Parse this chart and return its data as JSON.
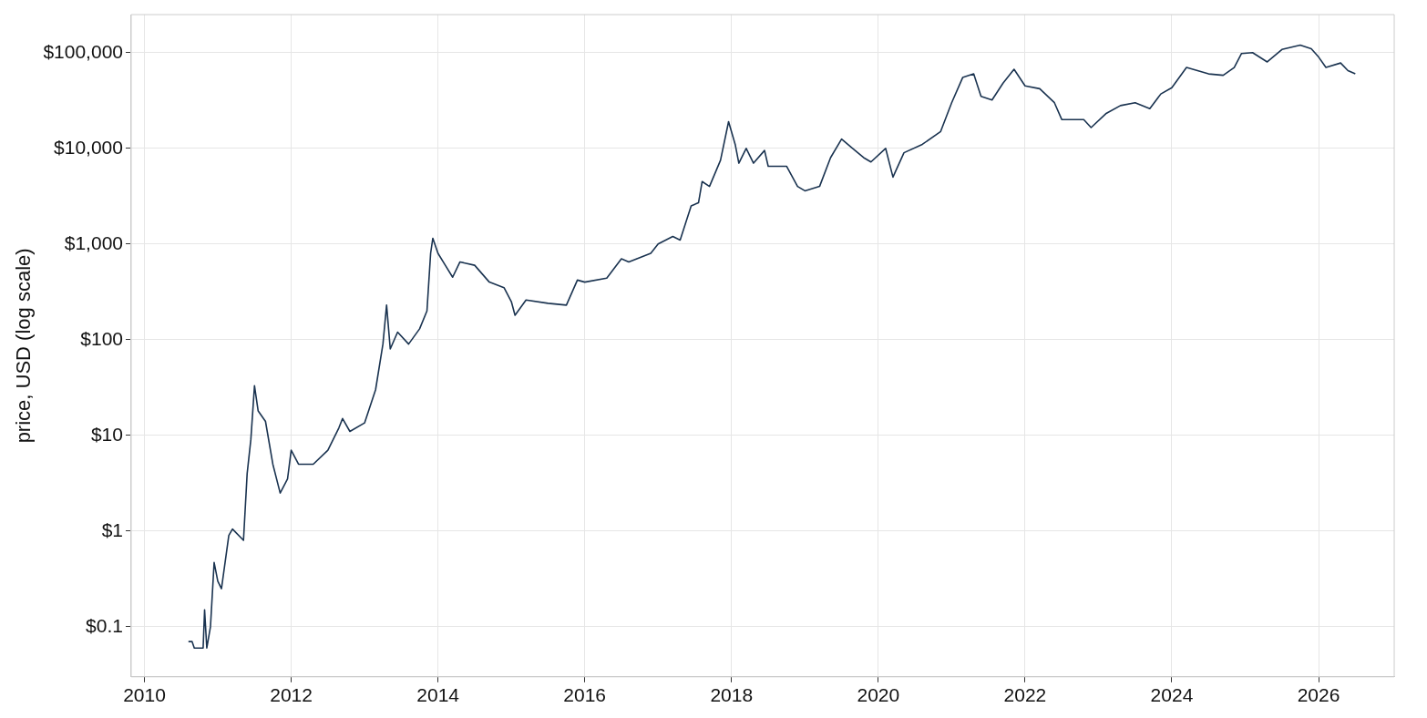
{
  "chart_data": {
    "type": "line",
    "ylabel": "price, USD (log scale)",
    "log": "y",
    "grid": true,
    "legend": false,
    "marker": "none",
    "line_style": "solid",
    "xlim": [
      2009.82,
      2027.03
    ],
    "xticks": [
      2010,
      2012,
      2014,
      2016,
      2018,
      2020,
      2022,
      2024,
      2026
    ],
    "ylim": [
      0.03,
      250000
    ],
    "yticks": [
      {
        "value": 0.1,
        "label": "$0.1"
      },
      {
        "value": 1,
        "label": "$1"
      },
      {
        "value": 10,
        "label": "$10"
      },
      {
        "value": 100,
        "label": "$100"
      },
      {
        "value": 1000,
        "label": "$1,000"
      },
      {
        "value": 10000,
        "label": "$10,000"
      },
      {
        "value": 100000,
        "label": "$100,000"
      }
    ],
    "series": [
      {
        "color": "#1a3350",
        "x": [
          2010.6,
          2010.65,
          2010.68,
          2010.8,
          2010.82,
          2010.85,
          2010.9,
          2010.95,
          2011.0,
          2011.05,
          2011.15,
          2011.2,
          2011.35,
          2011.4,
          2011.45,
          2011.5,
          2011.55,
          2011.65,
          2011.75,
          2011.85,
          2011.95,
          2012.0,
          2012.1,
          2012.3,
          2012.5,
          2012.65,
          2012.7,
          2012.8,
          2013.0,
          2013.15,
          2013.25,
          2013.3,
          2013.35,
          2013.45,
          2013.6,
          2013.75,
          2013.85,
          2013.9,
          2013.93,
          2014.0,
          2014.1,
          2014.2,
          2014.3,
          2014.5,
          2014.7,
          2014.9,
          2015.0,
          2015.05,
          2015.2,
          2015.5,
          2015.75,
          2015.9,
          2016.0,
          2016.3,
          2016.5,
          2016.6,
          2016.9,
          2017.0,
          2017.2,
          2017.3,
          2017.45,
          2017.55,
          2017.6,
          2017.7,
          2017.85,
          2017.96,
          2018.05,
          2018.1,
          2018.2,
          2018.3,
          2018.45,
          2018.5,
          2018.75,
          2018.9,
          2019.0,
          2019.2,
          2019.35,
          2019.5,
          2019.65,
          2019.8,
          2019.9,
          2020.1,
          2020.2,
          2020.35,
          2020.6,
          2020.85,
          2021.0,
          2021.15,
          2021.3,
          2021.4,
          2021.55,
          2021.7,
          2021.85,
          2022.0,
          2022.2,
          2022.4,
          2022.5,
          2022.8,
          2022.9,
          2023.1,
          2023.3,
          2023.5,
          2023.7,
          2023.85,
          2024.0,
          2024.2,
          2024.5,
          2024.7,
          2024.85,
          2024.95,
          2025.1,
          2025.3,
          2025.5,
          2025.75,
          2025.9,
          2026.0,
          2026.1,
          2026.3,
          2026.4,
          2026.5
        ],
        "values": [
          0.07,
          0.07,
          0.06,
          0.06,
          0.15,
          0.06,
          0.1,
          0.47,
          0.3,
          0.25,
          0.9,
          1.05,
          0.8,
          4,
          9,
          33,
          18,
          14,
          5,
          2.5,
          3.5,
          7,
          5,
          5,
          7,
          12,
          15,
          11,
          13.5,
          30,
          90,
          230,
          80,
          120,
          90,
          130,
          200,
          800,
          1150,
          800,
          600,
          450,
          650,
          600,
          400,
          350,
          250,
          180,
          260,
          240,
          230,
          420,
          400,
          440,
          700,
          650,
          800,
          1000,
          1200,
          1100,
          2500,
          2700,
          4500,
          4000,
          7500,
          19000,
          11000,
          7000,
          10000,
          7000,
          9500,
          6500,
          6500,
          4000,
          3600,
          4000,
          8000,
          12500,
          10000,
          8000,
          7200,
          10000,
          5000,
          9000,
          11000,
          15000,
          30000,
          55000,
          60000,
          35000,
          32000,
          48000,
          67000,
          45000,
          42000,
          30000,
          20000,
          20000,
          16500,
          23000,
          28000,
          30000,
          26000,
          37000,
          43000,
          70000,
          60000,
          58000,
          70000,
          98000,
          100000,
          80000,
          108000,
          120000,
          110000,
          90000,
          70000,
          78000,
          65000,
          60000
        ]
      }
    ]
  }
}
